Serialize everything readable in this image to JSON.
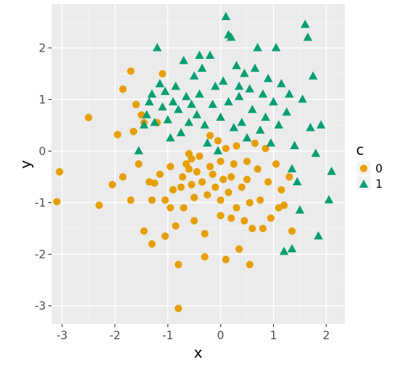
{
  "chart_data": {
    "type": "scatter",
    "title": "",
    "xlabel": "x",
    "ylabel": "y",
    "xlim": [
      -3.2,
      2.35
    ],
    "ylim": [
      -3.35,
      2.85
    ],
    "x_ticks": [
      -3,
      -2,
      -1,
      0,
      1,
      2
    ],
    "y_ticks": [
      -3,
      -2,
      -1,
      0,
      1,
      2
    ],
    "grid": true,
    "legend": {
      "title": "c",
      "position": "right"
    },
    "series": [
      {
        "name": "0",
        "color": "#E69F00",
        "marker": "circle",
        "points": [
          [
            -3.05,
            -0.4
          ],
          [
            -3.1,
            -0.98
          ],
          [
            -2.5,
            0.65
          ],
          [
            -2.3,
            -1.05
          ],
          [
            -2.05,
            -0.65
          ],
          [
            -1.95,
            0.32
          ],
          [
            -1.85,
            -0.5
          ],
          [
            -1.85,
            1.2
          ],
          [
            -1.7,
            1.55
          ],
          [
            -1.7,
            -0.95
          ],
          [
            -1.65,
            0.38
          ],
          [
            -1.6,
            0.9
          ],
          [
            -1.55,
            -0.25
          ],
          [
            -1.5,
            0.7
          ],
          [
            -1.45,
            -1.55
          ],
          [
            -1.35,
            -0.6
          ],
          [
            -1.3,
            -0.95
          ],
          [
            -1.3,
            -1.8
          ],
          [
            -1.25,
            -0.62
          ],
          [
            -1.2,
            0.55
          ],
          [
            -1.15,
            -0.45
          ],
          [
            -1.1,
            1.5
          ],
          [
            -1.05,
            -0.95
          ],
          [
            -1.05,
            -1.65
          ],
          [
            -0.95,
            -0.3
          ],
          [
            -0.95,
            -1.1
          ],
          [
            -0.9,
            -0.75
          ],
          [
            -0.85,
            -1.45
          ],
          [
            -0.8,
            -2.2
          ],
          [
            -0.8,
            -3.05
          ],
          [
            -0.75,
            -0.7
          ],
          [
            -0.72,
            -0.5
          ],
          [
            -0.7,
            -1.1
          ],
          [
            -0.65,
            -0.25
          ],
          [
            -0.6,
            -0.35
          ],
          [
            -0.55,
            -0.65
          ],
          [
            -0.5,
            -0.9
          ],
          [
            -0.5,
            -1.35
          ],
          [
            -0.45,
            -0.4
          ],
          [
            -0.4,
            -0.1
          ],
          [
            -0.35,
            -0.6
          ],
          [
            -0.3,
            -1.6
          ],
          [
            -0.25,
            -0.85
          ],
          [
            -0.2,
            -0.3
          ],
          [
            -0.15,
            -0.45
          ],
          [
            -0.1,
            -0.7
          ],
          [
            -0.05,
            0.2
          ],
          [
            0.0,
            -0.95
          ],
          [
            0.0,
            -1.25
          ],
          [
            0.05,
            -0.55
          ],
          [
            0.1,
            0.05
          ],
          [
            0.1,
            -2.1
          ],
          [
            0.15,
            -0.8
          ],
          [
            0.2,
            -0.5
          ],
          [
            0.25,
            -0.25
          ],
          [
            0.3,
            0.1
          ],
          [
            0.3,
            -1.1
          ],
          [
            0.35,
            -1.9
          ],
          [
            0.4,
            -0.7
          ],
          [
            0.45,
            -1.35
          ],
          [
            0.5,
            -0.2
          ],
          [
            0.5,
            -0.55
          ],
          [
            0.55,
            -1.0
          ],
          [
            0.55,
            -2.2
          ],
          [
            0.6,
            -1.5
          ],
          [
            0.65,
            0.15
          ],
          [
            0.7,
            -0.35
          ],
          [
            0.75,
            -0.95
          ],
          [
            0.8,
            -1.5
          ],
          [
            0.85,
            0.05
          ],
          [
            0.9,
            -0.6
          ],
          [
            0.95,
            -1.3
          ],
          [
            1.05,
            -0.25
          ],
          [
            1.1,
            -1.1
          ],
          [
            1.15,
            -0.75
          ],
          [
            1.2,
            -1.05
          ],
          [
            1.3,
            -0.5
          ],
          [
            1.35,
            -1.55
          ],
          [
            -0.3,
            -2.05
          ],
          [
            -0.2,
            0.3
          ],
          [
            -0.6,
            -0.05
          ],
          [
            0.2,
            -1.3
          ],
          [
            0.0,
            -0.2
          ],
          [
            -1.45,
            0.55
          ],
          [
            -0.55,
            -0.15
          ]
        ]
      },
      {
        "name": "1",
        "color": "#009E73",
        "marker": "triangle",
        "points": [
          [
            -1.55,
            0.0
          ],
          [
            -1.45,
            0.5
          ],
          [
            -1.4,
            0.7
          ],
          [
            -1.35,
            0.95
          ],
          [
            -1.3,
            1.1
          ],
          [
            -1.25,
            0.55
          ],
          [
            -1.2,
            2.0
          ],
          [
            -1.15,
            1.3
          ],
          [
            -1.1,
            0.85
          ],
          [
            -1.05,
            1.15
          ],
          [
            -1.0,
            0.6
          ],
          [
            -0.95,
            0.25
          ],
          [
            -0.9,
            0.95
          ],
          [
            -0.85,
            1.25
          ],
          [
            -0.8,
            0.8
          ],
          [
            -0.75,
            0.35
          ],
          [
            -0.7,
            1.75
          ],
          [
            -0.65,
            1.05
          ],
          [
            -0.6,
            0.55
          ],
          [
            -0.55,
            0.9
          ],
          [
            -0.5,
            1.45
          ],
          [
            -0.45,
            0.7
          ],
          [
            -0.4,
            1.1
          ],
          [
            -0.35,
            1.6
          ],
          [
            -0.3,
            0.5
          ],
          [
            -0.25,
            0.15
          ],
          [
            -0.2,
            1.85
          ],
          [
            -0.15,
            0.9
          ],
          [
            -0.1,
            1.25
          ],
          [
            -0.05,
            0.0
          ],
          [
            0.0,
            0.65
          ],
          [
            0.05,
            1.35
          ],
          [
            0.1,
            2.6
          ],
          [
            0.15,
            0.95
          ],
          [
            0.2,
            2.2
          ],
          [
            0.25,
            0.45
          ],
          [
            0.3,
            1.65
          ],
          [
            0.35,
            1.05
          ],
          [
            0.4,
            0.55
          ],
          [
            0.45,
            1.5
          ],
          [
            0.5,
            0.25
          ],
          [
            0.55,
            1.2
          ],
          [
            0.6,
            0.8
          ],
          [
            0.65,
            1.6
          ],
          [
            0.7,
            2.0
          ],
          [
            0.75,
            0.4
          ],
          [
            0.8,
            1.1
          ],
          [
            0.85,
            0.65
          ],
          [
            0.9,
            1.4
          ],
          [
            0.95,
            0.15
          ],
          [
            1.0,
            0.95
          ],
          [
            1.05,
            2.0
          ],
          [
            1.1,
            0.5
          ],
          [
            1.15,
            1.3
          ],
          [
            1.25,
            0.75
          ],
          [
            1.3,
            1.1
          ],
          [
            1.35,
            -0.35
          ],
          [
            1.4,
            0.1
          ],
          [
            1.45,
            -0.6
          ],
          [
            1.5,
            -1.15
          ],
          [
            1.55,
            1.0
          ],
          [
            1.6,
            2.45
          ],
          [
            1.65,
            2.2
          ],
          [
            1.7,
            0.45
          ],
          [
            1.75,
            1.45
          ],
          [
            1.8,
            -0.05
          ],
          [
            1.85,
            -1.65
          ],
          [
            1.9,
            0.5
          ],
          [
            2.05,
            -0.95
          ],
          [
            2.1,
            -0.4
          ],
          [
            1.2,
            -1.95
          ],
          [
            1.35,
            -1.9
          ],
          [
            0.15,
            2.25
          ],
          [
            -0.4,
            1.85
          ],
          [
            0.35,
            1.25
          ]
        ]
      }
    ]
  }
}
